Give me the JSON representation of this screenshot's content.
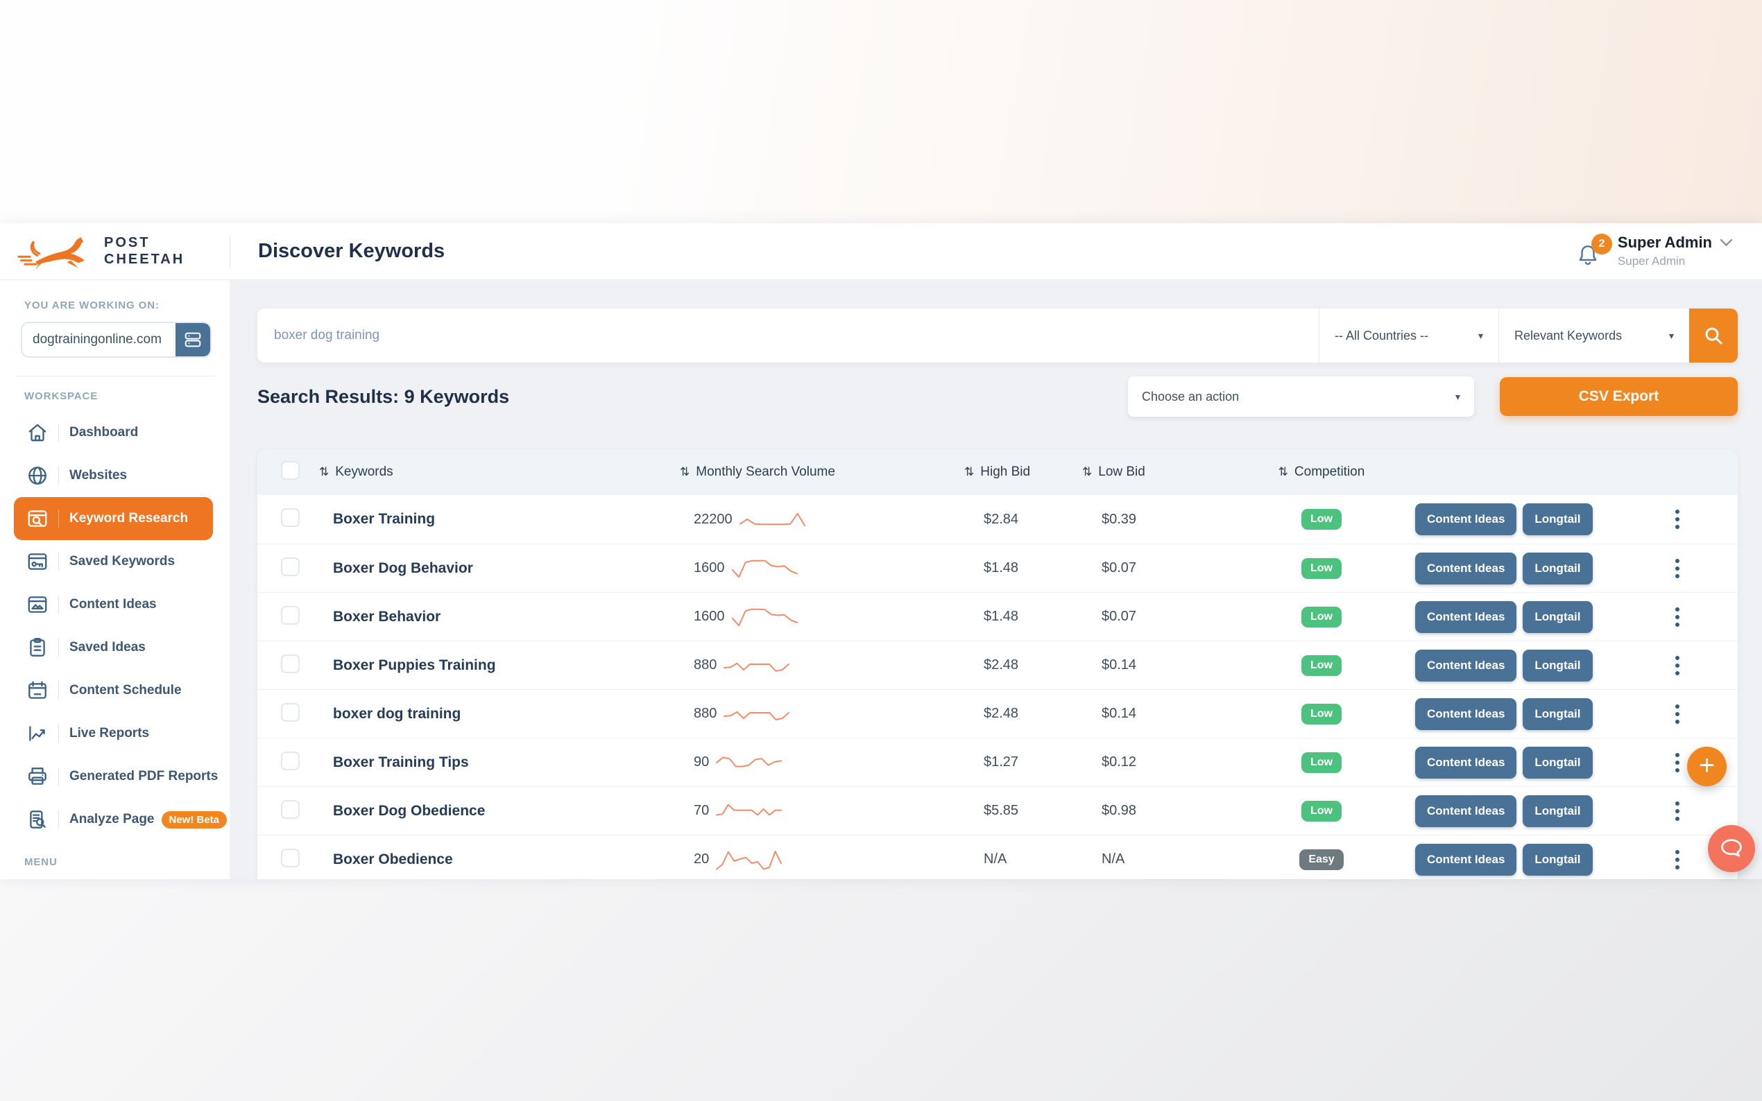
{
  "brand": {
    "name_line1": "POST",
    "name_line2": "CHEETAH"
  },
  "header": {
    "page_title": "Discover Keywords",
    "notifications_count": "2",
    "user_name": "Super Admin",
    "user_role": "Super Admin"
  },
  "sidebar": {
    "working_on_label": "YOU ARE WORKING ON:",
    "domain": "dogtrainingonline.com",
    "workspace_label": "WORKSPACE",
    "menu_label": "MENU",
    "items": [
      {
        "label": "Dashboard",
        "icon": "home-icon",
        "active": false
      },
      {
        "label": "Websites",
        "icon": "globe-icon",
        "active": false
      },
      {
        "label": "Keyword Research",
        "icon": "keyword-search-icon",
        "active": true
      },
      {
        "label": "Saved Keywords",
        "icon": "saved-keywords-icon",
        "active": false
      },
      {
        "label": "Content Ideas",
        "icon": "content-ideas-icon",
        "active": false
      },
      {
        "label": "Saved Ideas",
        "icon": "clipboard-icon",
        "active": false
      },
      {
        "label": "Content Schedule",
        "icon": "calendar-icon",
        "active": false
      },
      {
        "label": "Live Reports",
        "icon": "line-chart-icon",
        "active": false
      },
      {
        "label": "Generated PDF Reports",
        "icon": "printer-icon",
        "active": false
      },
      {
        "label": "Analyze Page",
        "icon": "analyze-page-icon",
        "active": false,
        "badge": "New! Beta"
      }
    ]
  },
  "search": {
    "query": "boxer dog training",
    "country_filter": "-- All Countries --",
    "keyword_type": "Relevant Keywords"
  },
  "results": {
    "heading": "Search Results: 9 Keywords",
    "action_placeholder": "Choose an action",
    "export_label": "CSV Export"
  },
  "table": {
    "sort_icon": "⇅",
    "columns": [
      "Keywords",
      "Monthly Search Volume",
      "High Bid",
      "Low Bid",
      "Competition"
    ],
    "row_actions": [
      "Content Ideas",
      "Longtail"
    ],
    "rows": [
      {
        "keyword": "Boxer Training",
        "volume": "22200",
        "high_bid": "$2.84",
        "low_bid": "$0.39",
        "competition": "Low",
        "trend": [
          30,
          52,
          30,
          28,
          28,
          28,
          28,
          30,
          78,
          22
        ]
      },
      {
        "keyword": "Boxer Dog Behavior",
        "volume": "1600",
        "high_bid": "$1.48",
        "low_bid": "$0.07",
        "competition": "Low",
        "trend": [
          45,
          12,
          80,
          88,
          88,
          88,
          66,
          60,
          64,
          40,
          28
        ]
      },
      {
        "keyword": "Boxer Behavior",
        "volume": "1600",
        "high_bid": "$1.48",
        "low_bid": "$0.07",
        "competition": "Low",
        "trend": [
          45,
          12,
          80,
          88,
          88,
          86,
          64,
          60,
          62,
          38,
          26
        ]
      },
      {
        "keyword": "Boxer Puppies Training",
        "volume": "880",
        "high_bid": "$2.48",
        "low_bid": "$0.14",
        "competition": "Low",
        "trend": [
          42,
          44,
          62,
          32,
          58,
          58,
          58,
          58,
          26,
          32,
          58
        ]
      },
      {
        "keyword": "boxer dog training",
        "volume": "880",
        "high_bid": "$2.48",
        "low_bid": "$0.14",
        "competition": "Low",
        "trend": [
          42,
          44,
          62,
          32,
          58,
          58,
          58,
          58,
          26,
          32,
          58
        ]
      },
      {
        "keyword": "Boxer Training Tips",
        "volume": "90",
        "high_bid": "$1.27",
        "low_bid": "$0.12",
        "competition": "Low",
        "trend": [
          52,
          76,
          70,
          34,
          34,
          40,
          66,
          70,
          40,
          55,
          60
        ]
      },
      {
        "keyword": "Boxer Dog Obedience",
        "volume": "70",
        "high_bid": "$5.85",
        "low_bid": "$0.98",
        "competition": "Low",
        "trend": [
          34,
          38,
          82,
          56,
          56,
          56,
          56,
          34,
          62,
          34,
          56,
          56
        ]
      },
      {
        "keyword": "Boxer Obedience",
        "volume": "20",
        "high_bid": "N/A",
        "low_bid": "N/A",
        "competition": "Easy",
        "trend": [
          8,
          30,
          88,
          45,
          55,
          62,
          35,
          42,
          8,
          16,
          90,
          35
        ]
      }
    ]
  },
  "fab": {
    "plus_label": "+"
  },
  "colors": {
    "brand_orange": "#ee7623",
    "button_orange": "#f0861f",
    "slate_blue": "#4a7296",
    "navy_text": "#1f3048",
    "sparkline": "#f08a68",
    "chat_fab": "#f4735c",
    "badge": {
      "Low": "#4cc27e",
      "Easy": "#6f7980"
    }
  }
}
